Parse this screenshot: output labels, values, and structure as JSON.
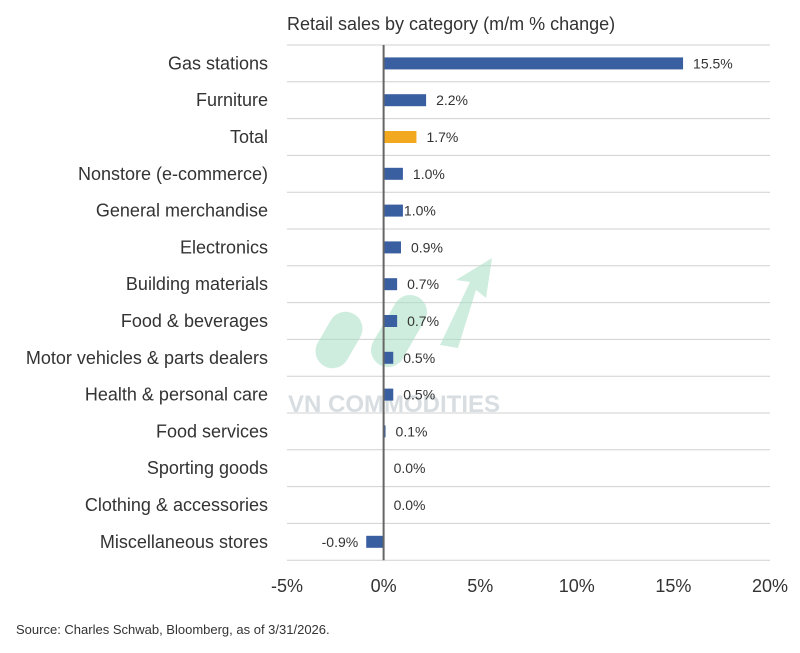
{
  "chart_data": {
    "type": "bar",
    "orientation": "horizontal",
    "title": "Retail sales by category (m/m % change)",
    "categories": [
      "Gas stations",
      "Furniture",
      "Total",
      "Nonstore (e-commerce)",
      "General merchandise",
      "Electronics",
      "Building materials",
      "Food & beverages",
      "Motor vehicles & parts dealers",
      "Health & personal care",
      "Food services",
      "Sporting goods",
      "Clothing & accessories",
      "Miscellaneous stores"
    ],
    "values": [
      15.5,
      2.2,
      1.7,
      1.0,
      1.0,
      0.9,
      0.7,
      0.7,
      0.5,
      0.5,
      0.1,
      0.0,
      0.0,
      -0.9
    ],
    "value_labels": [
      "15.5%",
      "2.2%",
      "1.7%",
      "1.0%",
      "1.0%",
      "0.9%",
      "0.7%",
      "0.7%",
      "0.5%",
      "0.5%",
      "0.1%",
      "0.0%",
      "0.0%",
      "-0.9%"
    ],
    "highlight_category": "Total",
    "xlim": [
      -5,
      20
    ],
    "xticks": [
      -5,
      0,
      5,
      10,
      15,
      20
    ],
    "xtick_labels": [
      "-5%",
      "0%",
      "5%",
      "10%",
      "15%",
      "20%"
    ],
    "xlabel": "",
    "ylabel": "",
    "grid": "horizontal"
  },
  "colors": {
    "bar": "#3a5fa0",
    "highlight": "#f2a91f",
    "zero_line": "#666666",
    "grid": "#d0d0d0"
  },
  "watermark": {
    "text": "VN COMMODITIES"
  },
  "source": "Source: Charles Schwab, Bloomberg, as of 3/31/2026."
}
